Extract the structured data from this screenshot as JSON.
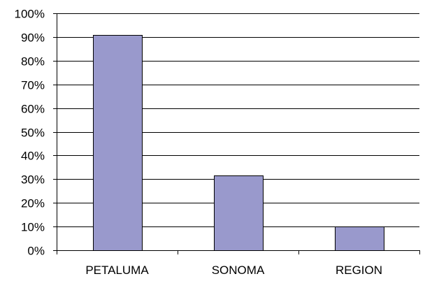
{
  "chart_data": {
    "type": "bar",
    "categories": [
      "PETALUMA",
      "SONOMA",
      "REGION"
    ],
    "values": [
      91,
      31.5,
      10
    ],
    "title": "",
    "xlabel": "",
    "ylabel": "",
    "ylim": [
      0,
      100
    ],
    "yticks": [
      0,
      10,
      20,
      30,
      40,
      50,
      60,
      70,
      80,
      90,
      100
    ],
    "ytick_labels": [
      "0%",
      "10%",
      "20%",
      "30%",
      "40%",
      "50%",
      "60%",
      "70%",
      "80%",
      "90%",
      "100%"
    ],
    "grid": true,
    "legend": "none",
    "bar_color": "#9999cc",
    "bar_edge_color": "#000000"
  }
}
